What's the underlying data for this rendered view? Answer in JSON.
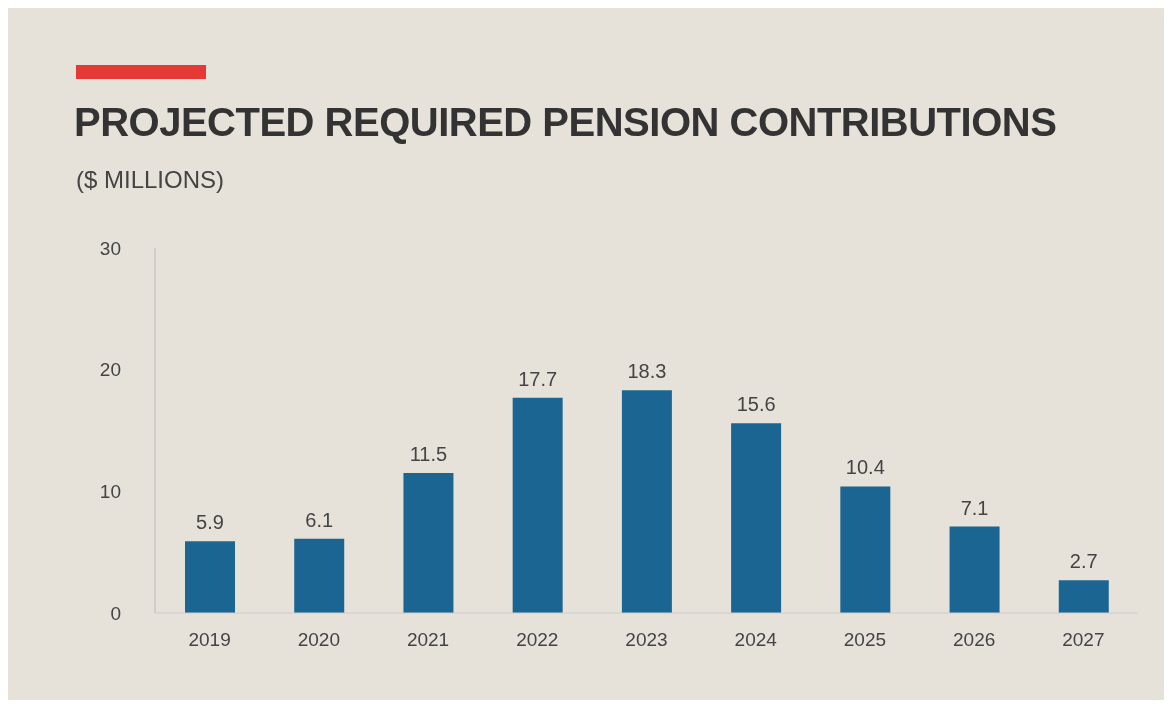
{
  "chart_data": {
    "type": "bar",
    "title": "PROJECTED REQUIRED PENSION CONTRIBUTIONS",
    "subtitle": "($ MILLIONS)",
    "categories": [
      "2019",
      "2020",
      "2021",
      "2022",
      "2023",
      "2024",
      "2025",
      "2026",
      "2027"
    ],
    "values": [
      5.9,
      6.1,
      11.5,
      17.7,
      18.3,
      15.6,
      10.4,
      7.1,
      2.7
    ],
    "color": "#1b6592",
    "ylim": [
      0,
      30
    ],
    "yticks": [
      0,
      10,
      20,
      30
    ],
    "grid": false,
    "data_labels": true
  }
}
